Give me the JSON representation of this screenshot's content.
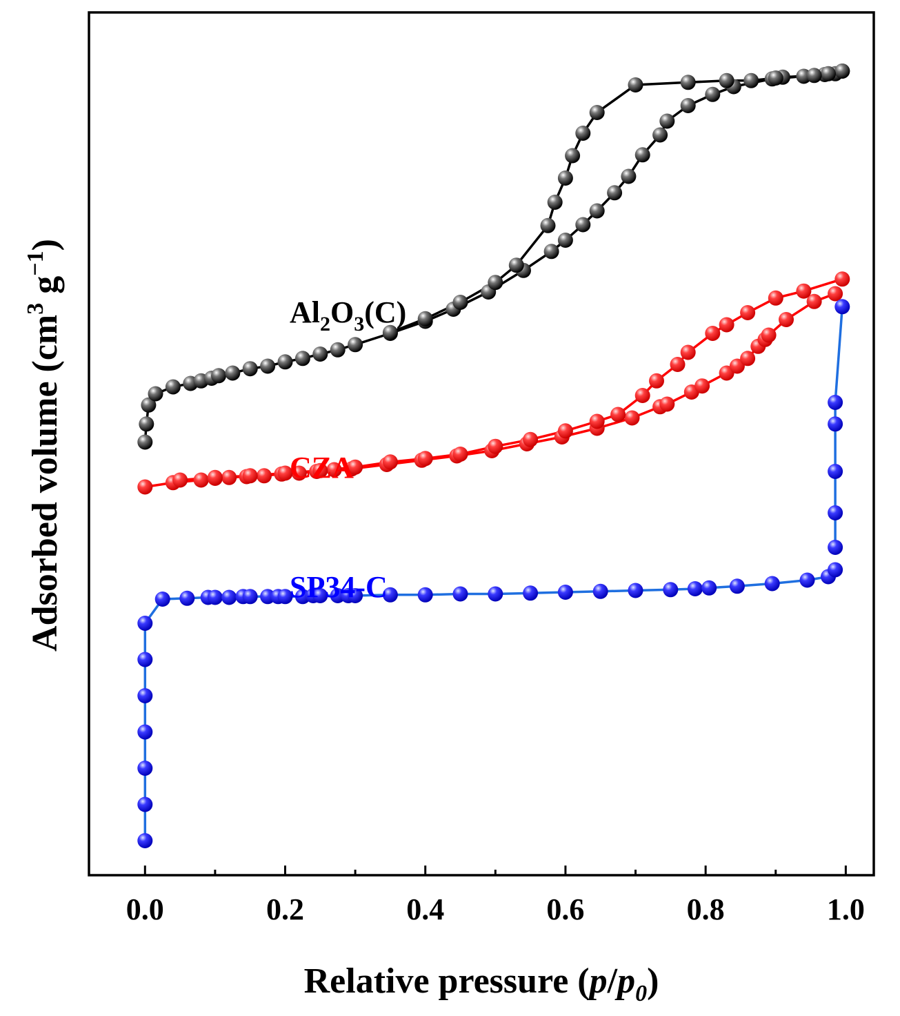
{
  "chart_data": {
    "type": "scatter",
    "xlabel": {
      "main": "Relative pressure (",
      "italic_p": "p",
      "slash": "/",
      "italic_p0": "p",
      "sub0": "0",
      "close": ")"
    },
    "ylabel": {
      "main": "Adsorbed volume (cm",
      "sup3": "3",
      "g": " g",
      "supm1": "−1",
      "close": ")"
    },
    "xlim": [
      -0.08,
      1.04
    ],
    "ylim": [
      0,
      100
    ],
    "x_ticks": [
      "0.0",
      "0.2",
      "0.4",
      "0.6",
      "0.8",
      "1.0"
    ],
    "x_tick_values": [
      0.0,
      0.2,
      0.4,
      0.6,
      0.8,
      1.0
    ],
    "y_ticks_shown": false,
    "series": [
      {
        "name": "Al2O3(C)",
        "label_parts": [
          "Al",
          "2",
          "O",
          "3",
          "(C)"
        ],
        "color": "#000000",
        "marker_fill": "#333333",
        "adsorption": {
          "x": [
            0.0,
            0.002,
            0.005,
            0.015,
            0.04,
            0.065,
            0.08,
            0.095,
            0.105,
            0.125,
            0.15,
            0.175,
            0.2,
            0.225,
            0.25,
            0.275,
            0.3,
            0.35,
            0.4,
            0.44,
            0.49,
            0.54,
            0.58,
            0.6,
            0.625,
            0.645,
            0.67,
            0.69,
            0.71,
            0.735,
            0.745,
            0.775,
            0.81,
            0.84,
            0.895,
            0.94,
            0.97,
            0.985,
            0.995
          ],
          "y": [
            50.2,
            52.3,
            54.5,
            55.8,
            56.6,
            57.0,
            57.3,
            57.6,
            57.9,
            58.2,
            58.7,
            59.0,
            59.5,
            59.9,
            60.4,
            60.9,
            61.5,
            62.8,
            64.2,
            65.6,
            67.6,
            70.1,
            72.3,
            73.6,
            75.4,
            77.0,
            79.1,
            81.0,
            83.5,
            85.8,
            87.4,
            89.2,
            90.5,
            91.4,
            92.3,
            92.6,
            92.8,
            92.9,
            93.2
          ]
        },
        "desorption": {
          "x": [
            0.995,
            0.975,
            0.955,
            0.91,
            0.9,
            0.865,
            0.83,
            0.775,
            0.7,
            0.645,
            0.625,
            0.61,
            0.6,
            0.585,
            0.575,
            0.53,
            0.5,
            0.45,
            0.4,
            0.35
          ],
          "y": [
            93.2,
            92.9,
            92.7,
            92.5,
            92.4,
            92.1,
            92.1,
            91.9,
            91.6,
            88.4,
            86.0,
            83.4,
            80.8,
            78.0,
            75.3,
            70.7,
            68.7,
            66.4,
            64.5,
            62.9
          ]
        }
      },
      {
        "name": "CZA",
        "label_parts": [
          "CZA"
        ],
        "color": "#ff0000",
        "marker_fill": "#ff0000",
        "adsorption": {
          "x": [
            0.0,
            0.04,
            0.08,
            0.1,
            0.12,
            0.145,
            0.17,
            0.195,
            0.22,
            0.245,
            0.27,
            0.295,
            0.345,
            0.395,
            0.445,
            0.495,
            0.545,
            0.595,
            0.645,
            0.695,
            0.735,
            0.745,
            0.78,
            0.795,
            0.83,
            0.845,
            0.86,
            0.875,
            0.885,
            0.89,
            0.915,
            0.955,
            0.985
          ],
          "y": [
            45.0,
            45.5,
            45.8,
            46.0,
            46.1,
            46.2,
            46.3,
            46.5,
            46.6,
            46.8,
            47.0,
            47.1,
            47.6,
            48.1,
            48.6,
            49.2,
            50.0,
            50.8,
            51.8,
            53.0,
            54.3,
            54.6,
            56.0,
            56.7,
            58.2,
            59.0,
            59.9,
            61.3,
            62.1,
            62.6,
            64.4,
            66.5,
            67.4
          ]
        },
        "desorption": {
          "x": [
            0.995,
            0.94,
            0.9,
            0.86,
            0.83,
            0.81,
            0.775,
            0.76,
            0.73,
            0.71,
            0.675,
            0.645,
            0.6,
            0.55,
            0.5,
            0.45,
            0.4,
            0.35,
            0.3,
            0.25,
            0.2,
            0.15,
            0.1,
            0.05
          ],
          "y": [
            69.1,
            67.7,
            66.9,
            65.2,
            63.8,
            62.8,
            60.6,
            59.2,
            57.3,
            55.6,
            53.4,
            52.6,
            51.5,
            50.5,
            49.7,
            48.8,
            48.3,
            47.9,
            47.3,
            46.9,
            46.6,
            46.3,
            46.1,
            45.8
          ]
        }
      },
      {
        "name": "SP34-C",
        "label_parts": [
          "SP34-C"
        ],
        "color": "#1f6fe0",
        "marker_fill": "#1a1aff",
        "adsorption": {
          "x": [
            0.0,
            0.0,
            0.0,
            0.0,
            0.0,
            0.0,
            0.0,
            0.025,
            0.06,
            0.09,
            0.1,
            0.12,
            0.14,
            0.15,
            0.175,
            0.19,
            0.2,
            0.225,
            0.24,
            0.25,
            0.275,
            0.29,
            0.3,
            0.35,
            0.4,
            0.45,
            0.5,
            0.55,
            0.6,
            0.65,
            0.7,
            0.75,
            0.785,
            0.805,
            0.845,
            0.895,
            0.945,
            0.975,
            0.985
          ],
          "y": [
            4.0,
            8.2,
            12.4,
            16.6,
            20.8,
            25.0,
            29.2,
            32.0,
            32.1,
            32.2,
            32.2,
            32.2,
            32.3,
            32.3,
            32.3,
            32.3,
            32.3,
            32.3,
            32.4,
            32.4,
            32.4,
            32.4,
            32.4,
            32.5,
            32.5,
            32.6,
            32.6,
            32.7,
            32.8,
            32.9,
            33.0,
            33.1,
            33.2,
            33.3,
            33.5,
            33.8,
            34.2,
            34.6,
            35.4
          ]
        },
        "desorption": {
          "x": [
            0.985,
            0.985,
            0.985,
            0.985,
            0.985,
            0.995
          ],
          "y": [
            38.0,
            42.0,
            46.8,
            52.3,
            54.8,
            65.9
          ]
        }
      }
    ]
  }
}
